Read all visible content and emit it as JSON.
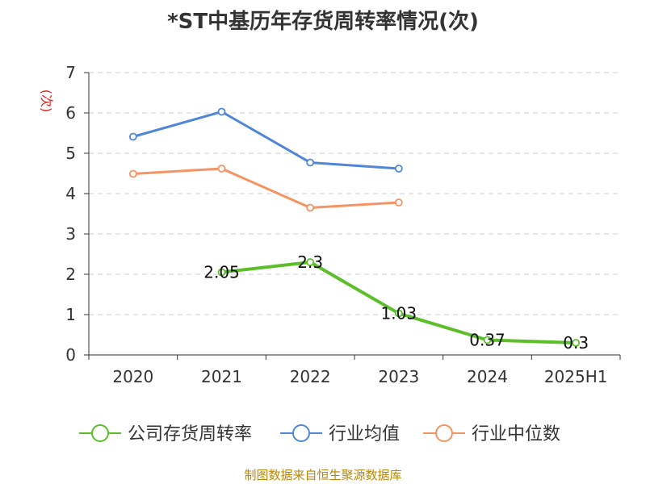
{
  "title": "*ST中基历年存货周转率情况(次)",
  "source": "制图数据来自恒生聚源数据库",
  "chart_data": {
    "type": "line",
    "title": "*ST中基历年存货周转率情况(次)",
    "ylabel": "(次)",
    "xlabel": "",
    "categories": [
      "2020",
      "2021",
      "2022",
      "2023",
      "2024",
      "2025H1"
    ],
    "ylim": [
      0,
      7
    ],
    "yticks": [
      0,
      1,
      2,
      3,
      4,
      5,
      6,
      7
    ],
    "grid": "horizontal dashed",
    "legend_position": "bottom",
    "series": [
      {
        "name": "公司存货周转率",
        "color": "#5cbf2a",
        "values": [
          null,
          2.05,
          2.3,
          1.03,
          0.37,
          0.3
        ],
        "labels": [
          null,
          "2.05",
          "2.3",
          "1.03",
          "0.37",
          "0.3"
        ]
      },
      {
        "name": "行业均值",
        "color": "#4f86d9",
        "values": [
          5.41,
          6.03,
          4.77,
          4.62,
          null,
          null
        ]
      },
      {
        "name": "行业中位数",
        "color": "#f59362",
        "values": [
          4.49,
          4.62,
          3.65,
          3.78,
          null,
          null
        ]
      }
    ]
  }
}
